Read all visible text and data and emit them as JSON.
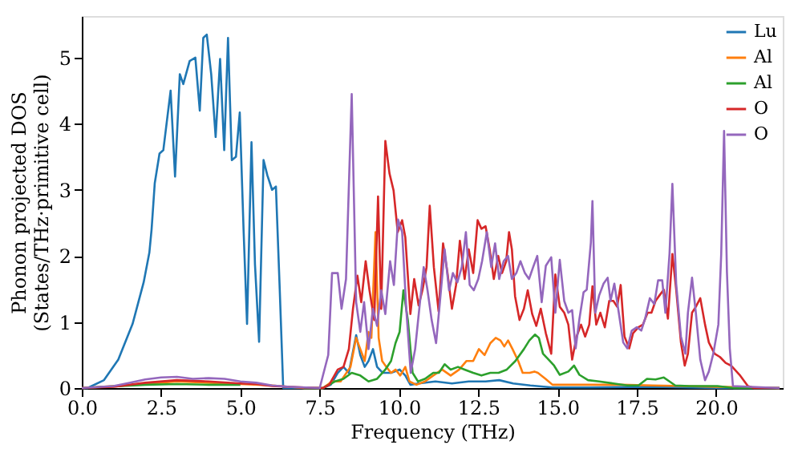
{
  "chart_data": {
    "type": "line",
    "xlabel": "Frequency (THz)",
    "ylabel": "Phonon projected DOS\n(States/THz·primitive cell)",
    "xlim": [
      0,
      22.1
    ],
    "ylim": [
      0,
      5.63
    ],
    "xticks": [
      {
        "value": 0,
        "label": "0.0"
      },
      {
        "value": 2.5,
        "label": "2.5"
      },
      {
        "value": 5,
        "label": "5.0"
      },
      {
        "value": 7.5,
        "label": "7.5"
      },
      {
        "value": 10,
        "label": "10.0"
      },
      {
        "value": 12.5,
        "label": "12.5"
      },
      {
        "value": 15,
        "label": "15.0"
      },
      {
        "value": 17.5,
        "label": "17.5"
      },
      {
        "value": 20,
        "label": "20.0"
      }
    ],
    "yticks": [
      0,
      1,
      2,
      3,
      4,
      5
    ],
    "grid": false,
    "legend": "top right",
    "marker": "none",
    "line_style": "solid",
    "series": [
      {
        "name": "Lu",
        "color": "#1f77b4",
        "x": [
          0,
          0.18,
          0.7,
          1.15,
          1.6,
          1.95,
          2.13,
          2.2,
          2.3,
          2.45,
          2.57,
          2.8,
          2.94,
          3.09,
          3.2,
          3.4,
          3.58,
          3.72,
          3.83,
          3.94,
          4.08,
          4.22,
          4.36,
          4.49,
          4.61,
          4.73,
          4.86,
          4.98,
          5.1,
          5.21,
          5.35,
          5.46,
          5.59,
          5.73,
          5.85,
          6.0,
          6.12,
          6.24,
          6.35,
          7.6,
          7.85,
          8.07,
          8.25,
          8.42,
          8.65,
          8.78,
          8.92,
          9.04,
          9.18,
          9.31,
          9.49,
          9.75,
          10.02,
          10.2,
          10.36,
          10.62,
          11.15,
          11.67,
          12.2,
          12.73,
          13.16,
          13.6,
          14.14,
          14.84,
          16,
          18,
          20,
          22
        ],
        "values": [
          0,
          0,
          0.12,
          0.43,
          0.97,
          1.6,
          2.05,
          2.4,
          3.1,
          3.55,
          3.6,
          4.5,
          3.2,
          4.75,
          4.6,
          4.95,
          5.0,
          4.2,
          5.3,
          5.35,
          4.75,
          3.8,
          4.98,
          3.6,
          5.3,
          3.45,
          3.5,
          4.17,
          2.4,
          0.97,
          3.72,
          1.87,
          0.7,
          3.45,
          3.22,
          3.0,
          3.05,
          1.5,
          0,
          0,
          0.05,
          0.23,
          0.32,
          0.23,
          0.8,
          0.5,
          0.32,
          0.41,
          0.59,
          0.32,
          0.23,
          0.23,
          0.28,
          0.19,
          0.05,
          0.07,
          0.1,
          0.07,
          0.1,
          0.1,
          0.12,
          0.07,
          0.04,
          0.01,
          0.01,
          0.02,
          0,
          0
        ]
      },
      {
        "name": "Al",
        "color": "#ff7f0e",
        "x": [
          0,
          2,
          3,
          4,
          5,
          6,
          7,
          7.6,
          7.89,
          8.16,
          8.47,
          8.65,
          8.78,
          8.92,
          9.04,
          9.13,
          9.26,
          9.36,
          9.47,
          9.6,
          9.75,
          9.89,
          10.04,
          10.2,
          10.33,
          10.55,
          10.82,
          11.08,
          11.36,
          11.63,
          11.9,
          12.13,
          12.34,
          12.52,
          12.7,
          12.88,
          13.05,
          13.2,
          13.32,
          13.44,
          13.58,
          13.76,
          13.9,
          14.12,
          14.27,
          14.38,
          14.62,
          14.84,
          15.0,
          16,
          17,
          18,
          19,
          20,
          22
        ],
        "values": [
          0,
          0.06,
          0.1,
          0.08,
          0.06,
          0.04,
          0,
          0,
          0.1,
          0.1,
          0.32,
          0.76,
          0.59,
          0.41,
          0.85,
          0.76,
          2.36,
          0.76,
          0.41,
          0.32,
          0.23,
          0.28,
          0.19,
          0.32,
          0.1,
          0.05,
          0.1,
          0.19,
          0.28,
          0.19,
          0.28,
          0.41,
          0.41,
          0.59,
          0.5,
          0.68,
          0.76,
          0.72,
          0.63,
          0.72,
          0.59,
          0.41,
          0.23,
          0.23,
          0.25,
          0.23,
          0.14,
          0.05,
          0.05,
          0.05,
          0.05,
          0.04,
          0.03,
          0.02,
          0
        ]
      },
      {
        "name": "Al",
        "color": "#2ca02c",
        "x": [
          0,
          2,
          3,
          4,
          5,
          5.3,
          6,
          7,
          7.6,
          7.98,
          8.25,
          8.51,
          8.78,
          9.04,
          9.31,
          9.57,
          9.75,
          9.89,
          10.02,
          10.14,
          10.28,
          10.43,
          10.6,
          10.82,
          11.08,
          11.26,
          11.44,
          11.63,
          11.86,
          12.07,
          12.34,
          12.6,
          12.88,
          13.14,
          13.4,
          13.67,
          13.94,
          14.11,
          14.29,
          14.41,
          14.54,
          14.72,
          14.89,
          15.07,
          15.34,
          15.52,
          15.69,
          15.96,
          16.31,
          16.76,
          17.2,
          17.55,
          17.82,
          18.09,
          18.35,
          18.53,
          18.71,
          19.15,
          20.04,
          20.57,
          22
        ],
        "values": [
          0,
          0.05,
          0.06,
          0.05,
          0.05,
          null,
          null,
          0,
          0,
          0.1,
          0.14,
          0.23,
          0.19,
          0.1,
          0.14,
          0.28,
          0.41,
          0.68,
          0.85,
          1.48,
          1.03,
          0.23,
          0.1,
          0.14,
          0.23,
          0.23,
          0.36,
          0.28,
          0.32,
          0.28,
          0.23,
          0.19,
          0.23,
          0.23,
          0.28,
          0.41,
          0.59,
          0.72,
          0.81,
          0.76,
          0.52,
          0.43,
          0.34,
          0.2,
          0.25,
          0.34,
          0.2,
          0.12,
          0.1,
          0.07,
          0.04,
          0.04,
          0.14,
          0.13,
          0.16,
          0.1,
          0.04,
          0.03,
          0.03,
          0,
          0
        ]
      },
      {
        "name": "O",
        "color": "#d62728",
        "x": [
          0,
          1,
          2,
          3,
          4,
          5,
          5.5,
          6,
          7,
          7.6,
          7.8,
          8.07,
          8.25,
          8.42,
          8.55,
          8.69,
          8.81,
          8.95,
          9.07,
          9.22,
          9.34,
          9.44,
          9.57,
          9.7,
          9.83,
          9.96,
          10.1,
          10.2,
          10.36,
          10.48,
          10.62,
          10.74,
          10.87,
          10.97,
          11.1,
          11.25,
          11.39,
          11.53,
          11.67,
          11.8,
          11.92,
          12.07,
          12.2,
          12.34,
          12.48,
          12.6,
          12.73,
          12.86,
          12.99,
          13.13,
          13.25,
          13.38,
          13.47,
          13.56,
          13.66,
          13.8,
          13.94,
          14.06,
          14.2,
          14.33,
          14.47,
          14.63,
          14.8,
          14.93,
          15.07,
          15.21,
          15.34,
          15.46,
          15.6,
          15.74,
          15.87,
          16.0,
          16.1,
          16.22,
          16.35,
          16.49,
          16.63,
          16.76,
          16.88,
          16.99,
          17.11,
          17.26,
          17.38,
          17.55,
          17.69,
          17.84,
          17.96,
          18.09,
          18.21,
          18.35,
          18.48,
          18.62,
          18.74,
          18.89,
          19.01,
          19.11,
          19.24,
          19.36,
          19.5,
          19.65,
          19.77,
          19.95,
          20.12,
          20.3,
          20.47,
          20.74,
          21.0,
          21.2,
          22
        ],
        "values": [
          0,
          0.02,
          0.08,
          0.12,
          0.1,
          0.07,
          0.06,
          0.03,
          0.01,
          0,
          0.05,
          0.28,
          0.32,
          0.59,
          1.2,
          1.7,
          1.3,
          1.92,
          1.48,
          1.03,
          2.9,
          1.2,
          3.74,
          3.25,
          2.99,
          2.36,
          2.54,
          2.28,
          1.12,
          1.65,
          1.25,
          1.48,
          1.83,
          2.76,
          1.83,
          1.16,
          2.19,
          1.74,
          1.2,
          1.56,
          2.23,
          1.65,
          2.1,
          1.74,
          2.54,
          2.41,
          2.45,
          2.1,
          1.65,
          2.0,
          1.74,
          1.92,
          2.36,
          2.1,
          1.39,
          1.03,
          1.2,
          1.48,
          1.12,
          0.94,
          1.2,
          0.83,
          0.52,
          1.72,
          1.23,
          1.14,
          0.96,
          0.43,
          0.78,
          0.96,
          0.78,
          0.96,
          1.54,
          0.96,
          1.14,
          0.92,
          1.32,
          1.32,
          1.23,
          1.56,
          0.78,
          0.6,
          0.83,
          0.92,
          0.96,
          1.14,
          1.14,
          1.32,
          1.4,
          1.49,
          1.05,
          2.03,
          1.49,
          0.69,
          0.34,
          0.52,
          1.14,
          1.23,
          1.36,
          0.96,
          0.69,
          0.52,
          0.47,
          0.38,
          0.34,
          0.2,
          0.03,
          0,
          0
        ]
      },
      {
        "name": "O",
        "color": "#9467bd",
        "x": [
          0,
          1,
          1.5,
          2,
          2.5,
          3,
          3.5,
          4,
          4.5,
          5,
          5.5,
          6,
          6.5,
          7.5,
          7.77,
          7.89,
          8.07,
          8.19,
          8.33,
          8.51,
          8.65,
          8.78,
          8.9,
          9.04,
          9.18,
          9.31,
          9.44,
          9.57,
          9.72,
          9.84,
          9.97,
          10.1,
          10.23,
          10.37,
          10.51,
          10.64,
          10.78,
          10.9,
          11.03,
          11.17,
          11.29,
          11.44,
          11.58,
          11.7,
          11.84,
          11.98,
          12.11,
          12.23,
          12.36,
          12.5,
          12.62,
          12.77,
          12.91,
          13.03,
          13.16,
          13.3,
          13.44,
          13.56,
          13.7,
          13.83,
          13.97,
          14.1,
          14.23,
          14.36,
          14.5,
          14.63,
          14.8,
          14.93,
          15.07,
          15.21,
          15.34,
          15.46,
          15.57,
          15.69,
          15.82,
          15.92,
          16.05,
          16.1,
          16.19,
          16.31,
          16.45,
          16.58,
          16.67,
          16.79,
          16.93,
          17.07,
          17.2,
          17.34,
          17.5,
          17.64,
          17.76,
          17.91,
          18.05,
          18.17,
          18.3,
          18.4,
          18.53,
          18.62,
          18.74,
          18.89,
          19.03,
          19.11,
          19.24,
          19.36,
          19.5,
          19.65,
          19.77,
          19.91,
          20.07,
          20.16,
          20.25,
          20.34,
          20.43,
          20.53,
          22
        ],
        "values": [
          0,
          0.03,
          0.08,
          0.13,
          0.16,
          0.17,
          0.14,
          0.15,
          0.14,
          0.1,
          0.08,
          0.04,
          0.02,
          0,
          0.5,
          1.74,
          1.74,
          1.2,
          1.65,
          4.45,
          1.3,
          0.85,
          1.3,
          0.59,
          1.2,
          0.94,
          1.48,
          1.12,
          1.92,
          1.56,
          2.55,
          2.36,
          1.2,
          0.23,
          0.59,
          1.2,
          1.83,
          1.48,
          1.03,
          0.68,
          1.3,
          2.1,
          1.48,
          1.74,
          1.6,
          1.83,
          2.36,
          1.56,
          1.48,
          1.65,
          1.92,
          2.36,
          1.83,
          2.19,
          1.65,
          1.92,
          2.0,
          1.65,
          1.74,
          1.92,
          1.74,
          1.65,
          1.83,
          2.0,
          1.3,
          1.85,
          1.98,
          1.14,
          1.94,
          1.32,
          1.14,
          1.18,
          0.6,
          1.05,
          1.45,
          1.49,
          2.2,
          2.83,
          1.14,
          1.4,
          1.58,
          1.67,
          1.32,
          1.58,
          1.14,
          0.69,
          0.6,
          0.87,
          0.92,
          0.87,
          1.05,
          1.36,
          1.27,
          1.63,
          1.63,
          1.14,
          2.03,
          3.09,
          1.58,
          0.78,
          0.52,
          1.14,
          1.67,
          1.14,
          0.43,
          0.12,
          0.25,
          0.52,
          0.96,
          2.03,
          3.89,
          1.76,
          0.6,
          0.03,
          0
        ]
      }
    ]
  }
}
